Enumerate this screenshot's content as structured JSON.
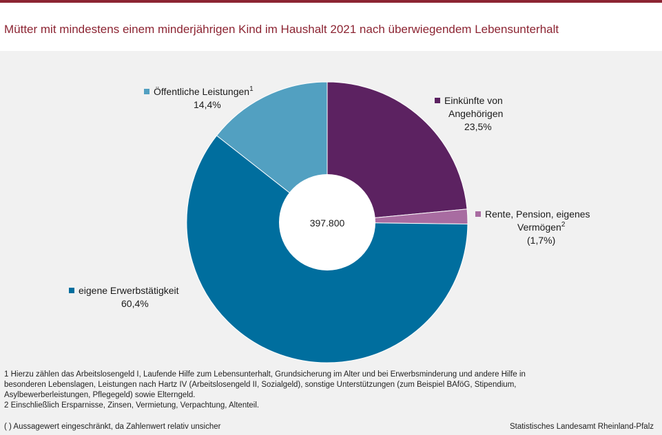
{
  "title": "Mütter mit mindestens einem minderjährigen Kind im Haushalt 2021 nach überwiegendem Lebensunterhalt",
  "chart_data": {
    "type": "pie",
    "variant": "donut",
    "center_label": "397.800",
    "slices": [
      {
        "name": "Einkünfte von Angehörigen",
        "value_label": "23,5%",
        "value": 23.5,
        "color": "#5c2261"
      },
      {
        "name": "Rente, Pension, eigenes Vermögen",
        "value_label": "(1,7%)",
        "value": 1.7,
        "color": "#a86ca1",
        "footnote_ref": "2"
      },
      {
        "name": "eigene Erwerbstätigkeit",
        "value_label": "60,4%",
        "value": 60.4,
        "color": "#006e9e"
      },
      {
        "name": "Öffentliche Leistungen",
        "value_label": "14,4%",
        "value": 14.4,
        "color": "#52a0c1",
        "footnote_ref": "1"
      }
    ],
    "labels": {
      "angehoerige_line1": "Einkünfte von",
      "angehoerige_line2": "Angehörigen",
      "rente_line1": "Rente,  Pension, eigenes",
      "rente_line2": "Vermögen",
      "erwerb": "eigene Erwerbstätigkeit",
      "oeffentlich": "Öffentliche  Leistungen"
    }
  },
  "footnotes": {
    "f1_line1": "1 Hierzu zählen das Arbeitslosengeld I, Laufende Hilfe zum Lebensunterhalt,  Grundsicherung im Alter und bei Erwerbsminderung  und andere Hilfe in",
    "f1_line2": "besonderen Lebenslagen,  Leistungen nach Hartz IV (Arbeitslosengeld II, Sozialgeld), sonstige Unterstützungen (zum Beispiel BAföG, Stipendium,",
    "f1_line3": "Asylbewerberleistungen,  Pflegegeld)  sowie Elterngeld.",
    "f2": "2 Einschließlich Ersparnisse, Zinsen, Vermietung, Verpachtung, Altenteil.",
    "uncertain": "( ) Aussagewert eingeschränkt, da Zahlenwert  relativ unsicher"
  },
  "source": "Statistisches Landesamt Rheinland-Pfalz"
}
